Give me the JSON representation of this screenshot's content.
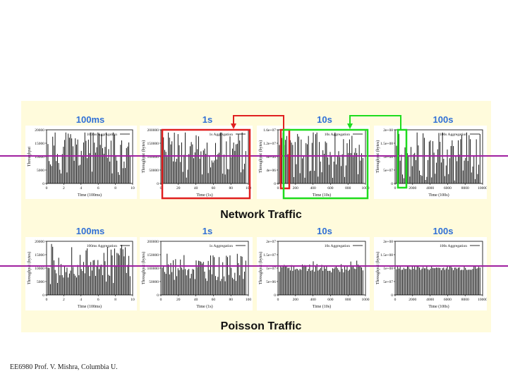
{
  "sections": [
    {
      "id": "network",
      "label": "Network Traffic",
      "charts": [
        {
          "title": "100ms",
          "legend": "100ms Aggregation",
          "xlabel": "Time (100ms)",
          "ylabel": "Throughput",
          "yticks": [
            "0",
            "5000",
            "10000",
            "15000",
            "20000"
          ],
          "xticks": [
            "0",
            "2",
            "4",
            "6",
            "8",
            "10"
          ],
          "level": 0.6,
          "variability": 0.45,
          "seed": 11
        },
        {
          "title": "1s",
          "legend": "1s Aggregation",
          "xlabel": "Time (1s)",
          "ylabel": "Throughput (bytes)",
          "yticks": [
            "0",
            "50000",
            "100000",
            "150000",
            "200000"
          ],
          "xticks": [
            "0",
            "20",
            "40",
            "60",
            "80",
            "100"
          ],
          "level": 0.55,
          "variability": 0.45,
          "seed": 23
        },
        {
          "title": "10s",
          "legend": "10s Aggregation",
          "xlabel": "Time (10s)",
          "ylabel": "Throughput (bytes)",
          "yticks": [
            "0",
            "4e+06",
            "8e+06",
            "1.2e+07",
            "1.6e+07"
          ],
          "xticks": [
            "0",
            "200",
            "400",
            "600",
            "800",
            "1000"
          ],
          "level": 0.55,
          "variability": 0.45,
          "seed": 37
        },
        {
          "title": "100s",
          "legend": "100s Aggregation",
          "xlabel": "Time (100s)",
          "ylabel": "Throughput (bytes)",
          "yticks": [
            "0",
            "5e+07",
            "1e+08",
            "1.5e+08",
            "2e+08"
          ],
          "xticks": [
            "0",
            "2000",
            "4000",
            "6000",
            "8000",
            "10000"
          ],
          "level": 0.5,
          "variability": 0.45,
          "seed": 53
        }
      ]
    },
    {
      "id": "poisson",
      "label": "Poisson Traffic",
      "charts": [
        {
          "title": "100ms",
          "legend": "100ms Aggregation",
          "xlabel": "Time (100ms)",
          "ylabel": "Throughput (bytes)",
          "yticks": [
            "0",
            "5000",
            "10000",
            "15000",
            "20000"
          ],
          "xticks": [
            "0",
            "2",
            "4",
            "6",
            "8",
            "10"
          ],
          "level": 0.55,
          "variability": 0.35,
          "seed": 71
        },
        {
          "title": "1s",
          "legend": "1s Aggregation",
          "xlabel": "Time (1s)",
          "ylabel": "Throughput (bytes)",
          "yticks": [
            "0",
            "50000",
            "100000",
            "150000",
            "200000"
          ],
          "xticks": [
            "0",
            "20",
            "40",
            "60",
            "80",
            "100"
          ],
          "level": 0.5,
          "variability": 0.25,
          "seed": 83
        },
        {
          "title": "10s",
          "legend": "10s Aggregation",
          "xlabel": "Time (10s)",
          "ylabel": "Throughput (bytes)",
          "yticks": [
            "0",
            "5e+06",
            "1e+07",
            "1.5e+07",
            "2e+07"
          ],
          "xticks": [
            "0",
            "200",
            "400",
            "600",
            "800",
            "1000"
          ],
          "level": 0.5,
          "variability": 0.08,
          "seed": 97
        },
        {
          "title": "100s",
          "legend": "100s Aggregation",
          "xlabel": "Time (100s)",
          "ylabel": "Throughput (bytes)",
          "yticks": [
            "0",
            "5e+07",
            "1e+08",
            "1.5e+08",
            "2e+08"
          ],
          "xticks": [
            "0",
            "2000",
            "4000",
            "6000",
            "8000",
            "10000"
          ],
          "level": 0.5,
          "variability": 0.04,
          "seed": 101
        }
      ]
    }
  ],
  "footer": "EE6980 Prof. V. Mishra, Columbia U.",
  "colors": {
    "panel": "#fffbdc",
    "title_blue": "#2f6fd6",
    "zoom_red": "#e02020",
    "zoom_green": "#1edc1e",
    "reference_line": "#a020a0",
    "bars": "#000000"
  },
  "chart_data": [
    {
      "type": "bar",
      "title": "100ms",
      "series": [
        {
          "name": "100ms Aggregation"
        }
      ],
      "xlabel": "Time (100ms)",
      "xlim": [
        0,
        10
      ],
      "ylim": [
        0,
        20000
      ]
    },
    {
      "type": "bar",
      "title": "1s",
      "series": [
        {
          "name": "1s Aggregation"
        }
      ],
      "xlabel": "Time (1s)",
      "ylabel": "Throughput (bytes)",
      "xlim": [
        0,
        100
      ],
      "ylim": [
        0,
        200000
      ]
    },
    {
      "type": "bar",
      "title": "10s",
      "series": [
        {
          "name": "10s Aggregation"
        }
      ],
      "xlabel": "Time (10s)",
      "ylabel": "Throughput (bytes)",
      "xlim": [
        0,
        1000
      ],
      "ylim": [
        0,
        16000000
      ]
    },
    {
      "type": "bar",
      "title": "100s",
      "series": [
        {
          "name": "100s Aggregation"
        }
      ],
      "xlabel": "Time (100s)",
      "ylabel": "Throughput (bytes)",
      "xlim": [
        0,
        10000
      ],
      "ylim": [
        0,
        200000000
      ]
    },
    {
      "type": "bar",
      "title": "100ms",
      "series": [
        {
          "name": "100ms Aggregation"
        }
      ],
      "xlabel": "Time (100ms)",
      "ylabel": "Throughput (bytes)",
      "xlim": [
        0,
        10
      ],
      "ylim": [
        0,
        20000
      ]
    },
    {
      "type": "bar",
      "title": "1s",
      "series": [
        {
          "name": "1s Aggregation"
        }
      ],
      "xlabel": "Time (1s)",
      "ylabel": "Throughput (bytes)",
      "xlim": [
        0,
        100
      ],
      "ylim": [
        0,
        200000
      ]
    },
    {
      "type": "bar",
      "title": "10s",
      "series": [
        {
          "name": "10s Aggregation"
        }
      ],
      "xlabel": "Time (10s)",
      "ylabel": "Throughput (bytes)",
      "xlim": [
        0,
        1000
      ],
      "ylim": [
        0,
        20000000
      ]
    },
    {
      "type": "bar",
      "title": "100s",
      "series": [
        {
          "name": "100s Aggregation"
        }
      ],
      "xlabel": "Time (100s)",
      "ylabel": "Throughput (bytes)",
      "xlim": [
        0,
        10000
      ],
      "ylim": [
        0,
        200000000
      ]
    }
  ]
}
